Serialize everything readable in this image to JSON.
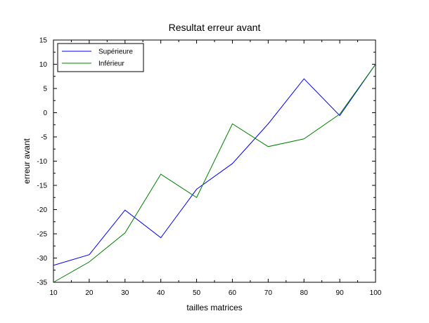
{
  "chart_data": {
    "type": "line",
    "title": "Resultat erreur avant",
    "xlabel": "tailles matrices",
    "ylabel": "erreur avant",
    "x": [
      10,
      20,
      30,
      40,
      50,
      60,
      70,
      80,
      90,
      100
    ],
    "xlim": [
      10,
      100
    ],
    "ylim": [
      -35,
      15
    ],
    "xticks": [
      10,
      20,
      30,
      40,
      50,
      60,
      70,
      80,
      90,
      100
    ],
    "yticks": [
      -35,
      -30,
      -25,
      -20,
      -15,
      -10,
      -5,
      0,
      5,
      10,
      15
    ],
    "grid": false,
    "legend": "top-left",
    "series": [
      {
        "name": "Supérieure",
        "color": "#0000ff",
        "values": [
          -31.5,
          -29.3,
          -20.1,
          -25.8,
          -15.8,
          -10.5,
          -2.3,
          7.0,
          -0.6,
          10.0
        ]
      },
      {
        "name": "Inférieur",
        "color": "#008000",
        "values": [
          -35.0,
          -30.8,
          -24.8,
          -12.7,
          -17.5,
          -2.3,
          -7.0,
          -5.4,
          -0.3,
          10.0
        ]
      }
    ]
  }
}
